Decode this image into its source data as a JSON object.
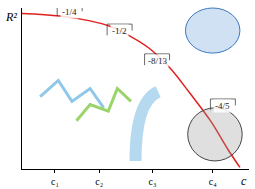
{
  "chart_data": {
    "type": "line",
    "x_label": "c",
    "y_label": "R²",
    "x": [
      0,
      1.67,
      3.0,
      3.9,
      4.7,
      5.6,
      6.5,
      7.4,
      8.3,
      9.1,
      9.6
    ],
    "values": [
      9.66,
      9.5,
      9.2,
      8.85,
      8.3,
      7.5,
      6.3,
      4.7,
      3.0,
      1.15,
      0.1
    ],
    "color": "#e0201e",
    "xlim": [
      0,
      10
    ],
    "ylim": [
      0,
      10
    ],
    "xticks": [
      {
        "value": 1.45,
        "label": "c₁"
      },
      {
        "value": 3.4,
        "label": "c₂"
      },
      {
        "value": 5.75,
        "label": "c₃"
      },
      {
        "value": 8.4,
        "label": "c₄"
      }
    ],
    "yticks": [],
    "tick_labels": "x",
    "grid": false,
    "annotations": [
      {
        "text": "-1/4",
        "x": 2.1,
        "y": 9.75
      },
      {
        "text": "-1/2",
        "x": 4.3,
        "y": 8.55
      },
      {
        "text": "-8/13",
        "x": 5.95,
        "y": 6.7
      },
      {
        "text": "-4/5",
        "x": 8.85,
        "y": 3.9
      }
    ]
  }
}
